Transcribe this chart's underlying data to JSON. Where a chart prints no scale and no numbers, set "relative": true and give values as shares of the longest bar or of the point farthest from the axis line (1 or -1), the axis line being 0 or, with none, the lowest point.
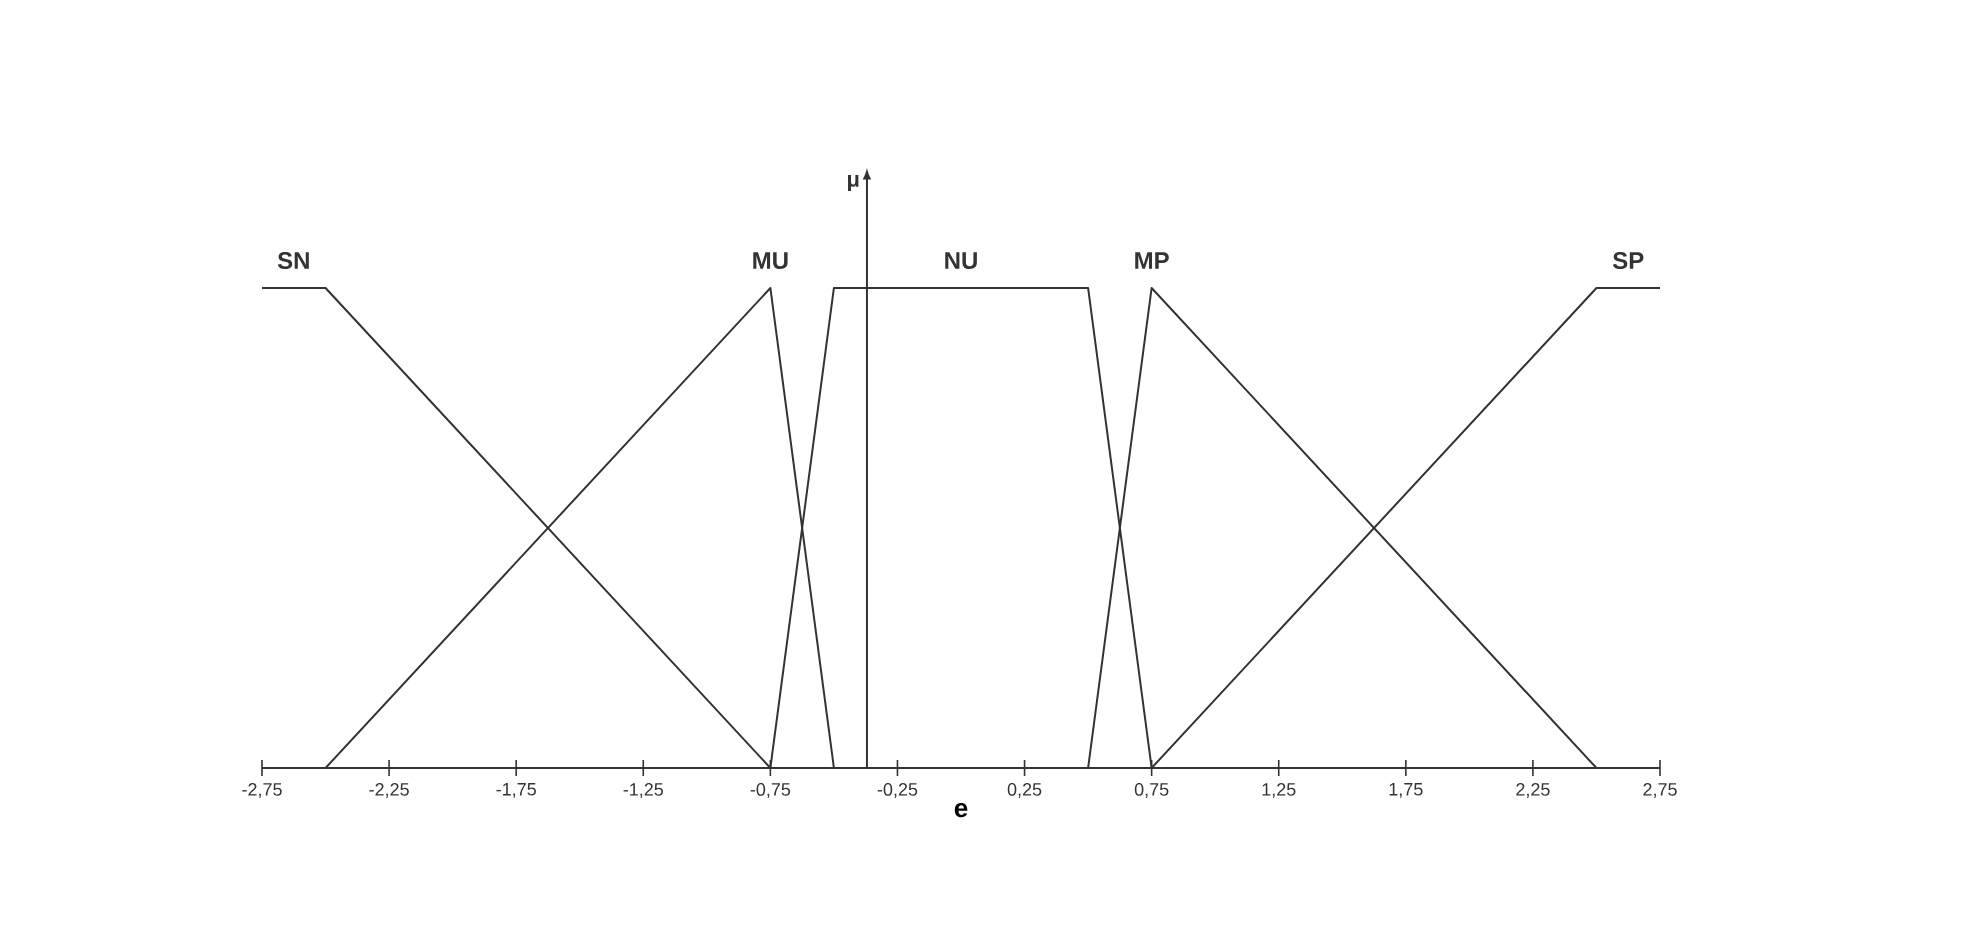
{
  "chart_data": {
    "type": "line",
    "relative": true,
    "xlabel": "e",
    "marker": "none",
    "xlim": [
      -2.75,
      2.75
    ],
    "xticks": [
      {
        "value": -2.75,
        "label": "-2,75"
      },
      {
        "value": -2.25,
        "label": "-2,25"
      },
      {
        "value": -1.75,
        "label": "-1,75"
      },
      {
        "value": -1.25,
        "label": "-1,25"
      },
      {
        "value": -0.75,
        "label": "-0,75"
      },
      {
        "value": -0.25,
        "label": "-0,25"
      },
      {
        "value": 0.25,
        "label": "0,25"
      },
      {
        "value": 0.75,
        "label": "0,75"
      },
      {
        "value": 1.25,
        "label": "1,25"
      },
      {
        "value": 1.75,
        "label": "1,75"
      },
      {
        "value": 2.25,
        "label": "2,25"
      },
      {
        "value": 2.75,
        "label": "2,75"
      }
    ],
    "ref_lines": [
      {
        "axis": "x",
        "value": -0.37,
        "label": "μ",
        "color": "#333333"
      }
    ],
    "series": [
      {
        "name": "SN",
        "color": "#333333",
        "x": [
          -2.75,
          -2.5,
          -0.75
        ],
        "values": [
          1,
          1,
          0
        ]
      },
      {
        "name": "MU",
        "color": "#333333",
        "x": [
          -2.5,
          -0.75,
          -0.5
        ],
        "values": [
          0,
          1,
          0
        ]
      },
      {
        "name": "NU",
        "color": "#333333",
        "x": [
          -0.75,
          -0.5,
          0.5,
          0.75
        ],
        "values": [
          0,
          1,
          1,
          0
        ]
      },
      {
        "name": "MP",
        "color": "#333333",
        "x": [
          0.5,
          0.75,
          2.5
        ],
        "values": [
          0,
          1,
          0
        ]
      },
      {
        "name": "SP",
        "color": "#333333",
        "x": [
          0.75,
          2.5,
          2.75
        ],
        "values": [
          0,
          1,
          1
        ]
      }
    ]
  }
}
